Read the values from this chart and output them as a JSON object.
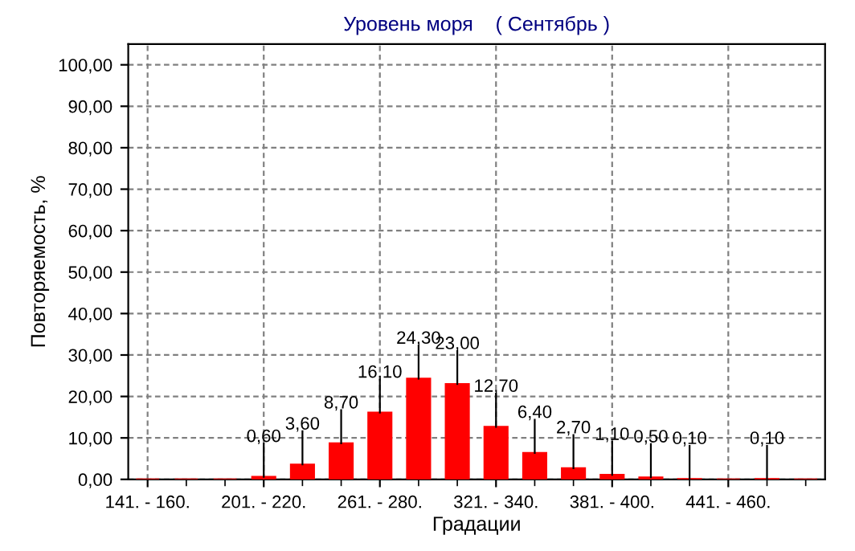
{
  "chart_data": {
    "type": "bar",
    "title": "Уровень моря    ( Сентябрь )",
    "xlabel": "Градации",
    "ylabel": "Повторяемость, %",
    "categories": [
      "141. - 160.",
      null,
      null,
      "201. - 220.",
      null,
      null,
      "261. - 280.",
      null,
      null,
      "321. - 340.",
      null,
      null,
      "381. - 400.",
      null,
      null,
      "441. - 460.",
      null,
      null
    ],
    "values": [
      0,
      0,
      0,
      0.6,
      3.6,
      8.7,
      16.1,
      24.3,
      23.0,
      12.7,
      6.4,
      2.7,
      1.1,
      0.5,
      0.1,
      0,
      0.1,
      0
    ],
    "value_labels": [
      null,
      null,
      null,
      "0,60",
      "3,60",
      "8,70",
      "16,10",
      "24,30",
      "23,00",
      "12,70",
      "6,40",
      "2,70",
      "1,10",
      "0,50",
      "0,10",
      null,
      "0,10",
      null
    ],
    "color": "#ff0000",
    "ylim": [
      0,
      105
    ],
    "yticks": [
      {
        "value": 0,
        "label": "0,00"
      },
      {
        "value": 10,
        "label": "10,00"
      },
      {
        "value": 20,
        "label": "20,00"
      },
      {
        "value": 30,
        "label": "30,00"
      },
      {
        "value": 40,
        "label": "40,00"
      },
      {
        "value": 50,
        "label": "50,00"
      },
      {
        "value": 60,
        "label": "60,00"
      },
      {
        "value": 70,
        "label": "70,00"
      },
      {
        "value": 80,
        "label": "80,00"
      },
      {
        "value": 90,
        "label": "90,00"
      },
      {
        "value": 100,
        "label": "100,00"
      }
    ],
    "grid": true,
    "legend": false
  }
}
